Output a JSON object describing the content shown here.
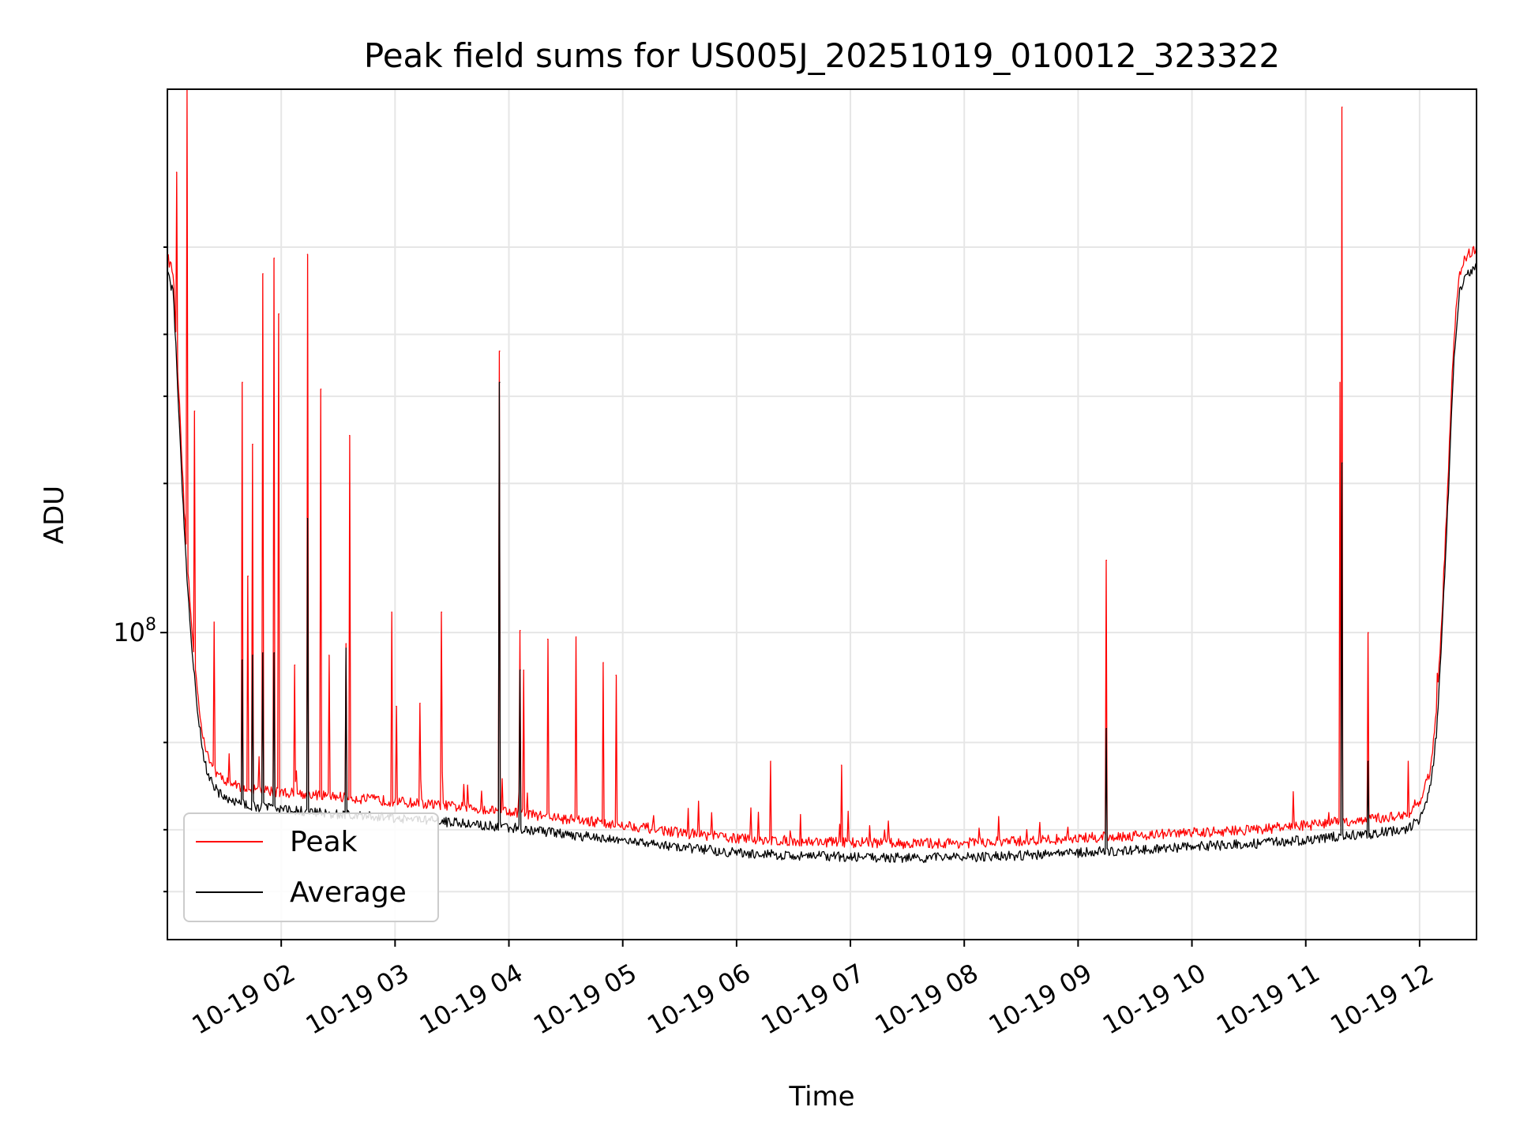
{
  "chart_data": {
    "type": "line",
    "title": "Peak field sums for US005J_20251019_010012_323322",
    "xlabel": "Time",
    "ylabel": "ADU",
    "y_scale": "log",
    "xlim": [
      1.0,
      12.5
    ],
    "ylim": [
      24000000,
      1250000000
    ],
    "grid": true,
    "legend_position": "lower-left",
    "x_tick_values": [
      2,
      3,
      4,
      5,
      6,
      7,
      8,
      9,
      10,
      11,
      12
    ],
    "x_tick_labels": [
      "10-19 02",
      "10-19 03",
      "10-19 04",
      "10-19 05",
      "10-19 06",
      "10-19 07",
      "10-19 08",
      "10-19 09",
      "10-19 10",
      "10-19 11",
      "10-19 12"
    ],
    "y_major_ticks": [
      {
        "value": 100000000,
        "base": "10",
        "exp": "8"
      }
    ],
    "y_minor_ticks": [
      30000000,
      40000000,
      60000000,
      200000000,
      300000000,
      400000000,
      600000000
    ],
    "series": [
      {
        "name": "Peak",
        "color": "#ff0000",
        "baseline": {
          "x": [
            1.0,
            1.05,
            1.1,
            1.15,
            1.2,
            1.25,
            1.3,
            1.35,
            1.45,
            1.6,
            1.8,
            2.0,
            2.5,
            3.0,
            3.5,
            4.0,
            4.5,
            5.0,
            5.5,
            6.0,
            6.5,
            7.0,
            7.5,
            8.0,
            8.5,
            9.0,
            9.5,
            10.0,
            10.5,
            11.0,
            11.3,
            11.6,
            11.9,
            12.0,
            12.1,
            12.15,
            12.2,
            12.25,
            12.3,
            12.35,
            12.4,
            12.5
          ],
          "y": [
            560000000,
            520000000,
            300000000,
            170000000,
            110000000,
            80000000,
            63000000,
            55000000,
            50000000,
            48000000,
            47000000,
            46500000,
            45500000,
            44500000,
            43500000,
            42500000,
            41000000,
            40000000,
            38500000,
            37500000,
            37000000,
            36800000,
            36600000,
            36700000,
            37000000,
            37500000,
            38000000,
            38500000,
            39000000,
            39800000,
            40500000,
            41000000,
            42000000,
            44000000,
            52000000,
            68000000,
            110000000,
            200000000,
            380000000,
            520000000,
            560000000,
            580000000
          ]
        },
        "spikes": [
          {
            "x": 1.08,
            "y": 850000000
          },
          {
            "x": 1.17,
            "y": 1250000000
          },
          {
            "x": 1.24,
            "y": 280000000
          },
          {
            "x": 1.41,
            "y": 105000000
          },
          {
            "x": 1.66,
            "y": 320000000
          },
          {
            "x": 1.71,
            "y": 130000000
          },
          {
            "x": 1.75,
            "y": 240000000
          },
          {
            "x": 1.84,
            "y": 530000000
          },
          {
            "x": 1.94,
            "y": 570000000
          },
          {
            "x": 1.98,
            "y": 440000000
          },
          {
            "x": 2.12,
            "y": 86000000
          },
          {
            "x": 2.23,
            "y": 580000000
          },
          {
            "x": 2.35,
            "y": 310000000
          },
          {
            "x": 2.42,
            "y": 90000000
          },
          {
            "x": 2.57,
            "y": 95000000
          },
          {
            "x": 2.6,
            "y": 250000000
          },
          {
            "x": 2.97,
            "y": 110000000
          },
          {
            "x": 3.01,
            "y": 71000000
          },
          {
            "x": 3.22,
            "y": 72000000
          },
          {
            "x": 3.41,
            "y": 110000000
          },
          {
            "x": 3.92,
            "y": 370000000
          },
          {
            "x": 4.1,
            "y": 101000000
          },
          {
            "x": 4.13,
            "y": 84000000
          },
          {
            "x": 4.34,
            "y": 97000000
          },
          {
            "x": 4.59,
            "y": 98000000
          },
          {
            "x": 4.83,
            "y": 87000000
          },
          {
            "x": 4.94,
            "y": 82000000
          },
          {
            "x": 6.3,
            "y": 55000000
          },
          {
            "x": 6.92,
            "y": 54000000
          },
          {
            "x": 9.25,
            "y": 140000000
          },
          {
            "x": 9.98,
            "y": 40000000
          },
          {
            "x": 11.3,
            "y": 320000000
          },
          {
            "x": 11.32,
            "y": 1150000000
          },
          {
            "x": 11.55,
            "y": 100000000
          },
          {
            "x": 11.9,
            "y": 55000000
          }
        ]
      },
      {
        "name": "Average",
        "color": "#000000",
        "baseline": {
          "x": [
            1.0,
            1.05,
            1.1,
            1.15,
            1.2,
            1.25,
            1.3,
            1.35,
            1.45,
            1.6,
            1.8,
            2.0,
            2.5,
            3.0,
            3.5,
            4.0,
            4.5,
            5.0,
            5.5,
            6.0,
            6.5,
            7.0,
            7.5,
            8.0,
            8.5,
            9.0,
            9.5,
            10.0,
            10.5,
            11.0,
            11.3,
            11.6,
            11.9,
            12.0,
            12.1,
            12.15,
            12.2,
            12.25,
            12.3,
            12.35,
            12.4,
            12.5
          ],
          "y": [
            540000000,
            500000000,
            290000000,
            160000000,
            105000000,
            77000000,
            61000000,
            53000000,
            48500000,
            46500000,
            45500000,
            45000000,
            44000000,
            43200000,
            42300000,
            41400000,
            40000000,
            39000000,
            37700000,
            36800000,
            36300000,
            36100000,
            35900000,
            36000000,
            36300000,
            36800000,
            37300000,
            37800000,
            38300000,
            39000000,
            39700000,
            40200000,
            41200000,
            43000000,
            50000000,
            65000000,
            105000000,
            190000000,
            360000000,
            500000000,
            540000000,
            560000000
          ]
        },
        "spikes": [
          {
            "x": 1.66,
            "y": 88000000
          },
          {
            "x": 1.75,
            "y": 90000000
          },
          {
            "x": 1.84,
            "y": 91000000
          },
          {
            "x": 1.94,
            "y": 91000000
          },
          {
            "x": 2.23,
            "y": 170000000
          },
          {
            "x": 2.57,
            "y": 93000000
          },
          {
            "x": 3.92,
            "y": 320000000
          },
          {
            "x": 4.1,
            "y": 84000000
          },
          {
            "x": 9.25,
            "y": 64000000
          },
          {
            "x": 11.32,
            "y": 220000000
          },
          {
            "x": 11.55,
            "y": 55000000
          }
        ]
      }
    ]
  }
}
